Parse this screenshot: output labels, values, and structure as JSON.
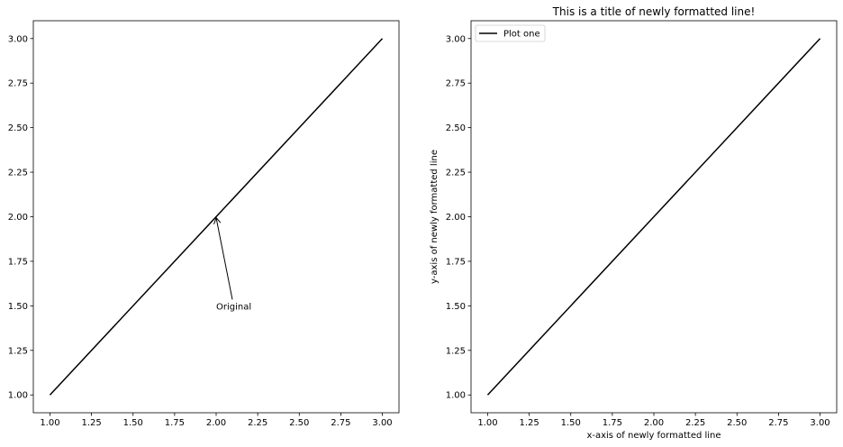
{
  "chart_data": [
    {
      "type": "line",
      "title": "",
      "xlabel": "",
      "ylabel": "",
      "xlim": [
        0.9,
        3.1
      ],
      "ylim": [
        0.9,
        3.1
      ],
      "xticks": [
        1.0,
        1.25,
        1.5,
        1.75,
        2.0,
        2.25,
        2.5,
        2.75,
        3.0
      ],
      "xtick_labels": [
        "1.00",
        "1.25",
        "1.50",
        "1.75",
        "2.00",
        "2.25",
        "2.50",
        "2.75",
        "3.00"
      ],
      "yticks": [
        1.0,
        1.25,
        1.5,
        1.75,
        2.0,
        2.25,
        2.5,
        2.75,
        3.0
      ],
      "ytick_labels": [
        "1.00",
        "1.25",
        "1.50",
        "1.75",
        "2.00",
        "2.25",
        "2.50",
        "2.75",
        "3.00"
      ],
      "grid": false,
      "series": [
        {
          "x": [
            1,
            2,
            3
          ],
          "y": [
            1,
            2,
            3
          ],
          "color": "#000000"
        }
      ],
      "annotation": {
        "text": "Original",
        "xy": [
          2,
          2
        ],
        "xytext": [
          2,
          1.5
        ]
      }
    },
    {
      "type": "line",
      "title": "This is a title of newly formatted line!",
      "xlabel": "x-axis of newly formatted line",
      "ylabel": "y-axis of newly formatted line",
      "xlim": [
        0.9,
        3.1
      ],
      "ylim": [
        0.9,
        3.1
      ],
      "xticks": [
        1.0,
        1.25,
        1.5,
        1.75,
        2.0,
        2.25,
        2.5,
        2.75,
        3.0
      ],
      "xtick_labels": [
        "1.00",
        "1.25",
        "1.50",
        "1.75",
        "2.00",
        "2.25",
        "2.50",
        "2.75",
        "3.00"
      ],
      "yticks": [
        1.0,
        1.25,
        1.5,
        1.75,
        2.0,
        2.25,
        2.5,
        2.75,
        3.0
      ],
      "ytick_labels": [
        "1.00",
        "1.25",
        "1.50",
        "1.75",
        "2.00",
        "2.25",
        "2.50",
        "2.75",
        "3.00"
      ],
      "grid": false,
      "legend_position": "top-left",
      "series": [
        {
          "name": "Plot one",
          "x": [
            1,
            2,
            3
          ],
          "y": [
            1,
            2,
            3
          ],
          "color": "#000000"
        }
      ]
    }
  ]
}
